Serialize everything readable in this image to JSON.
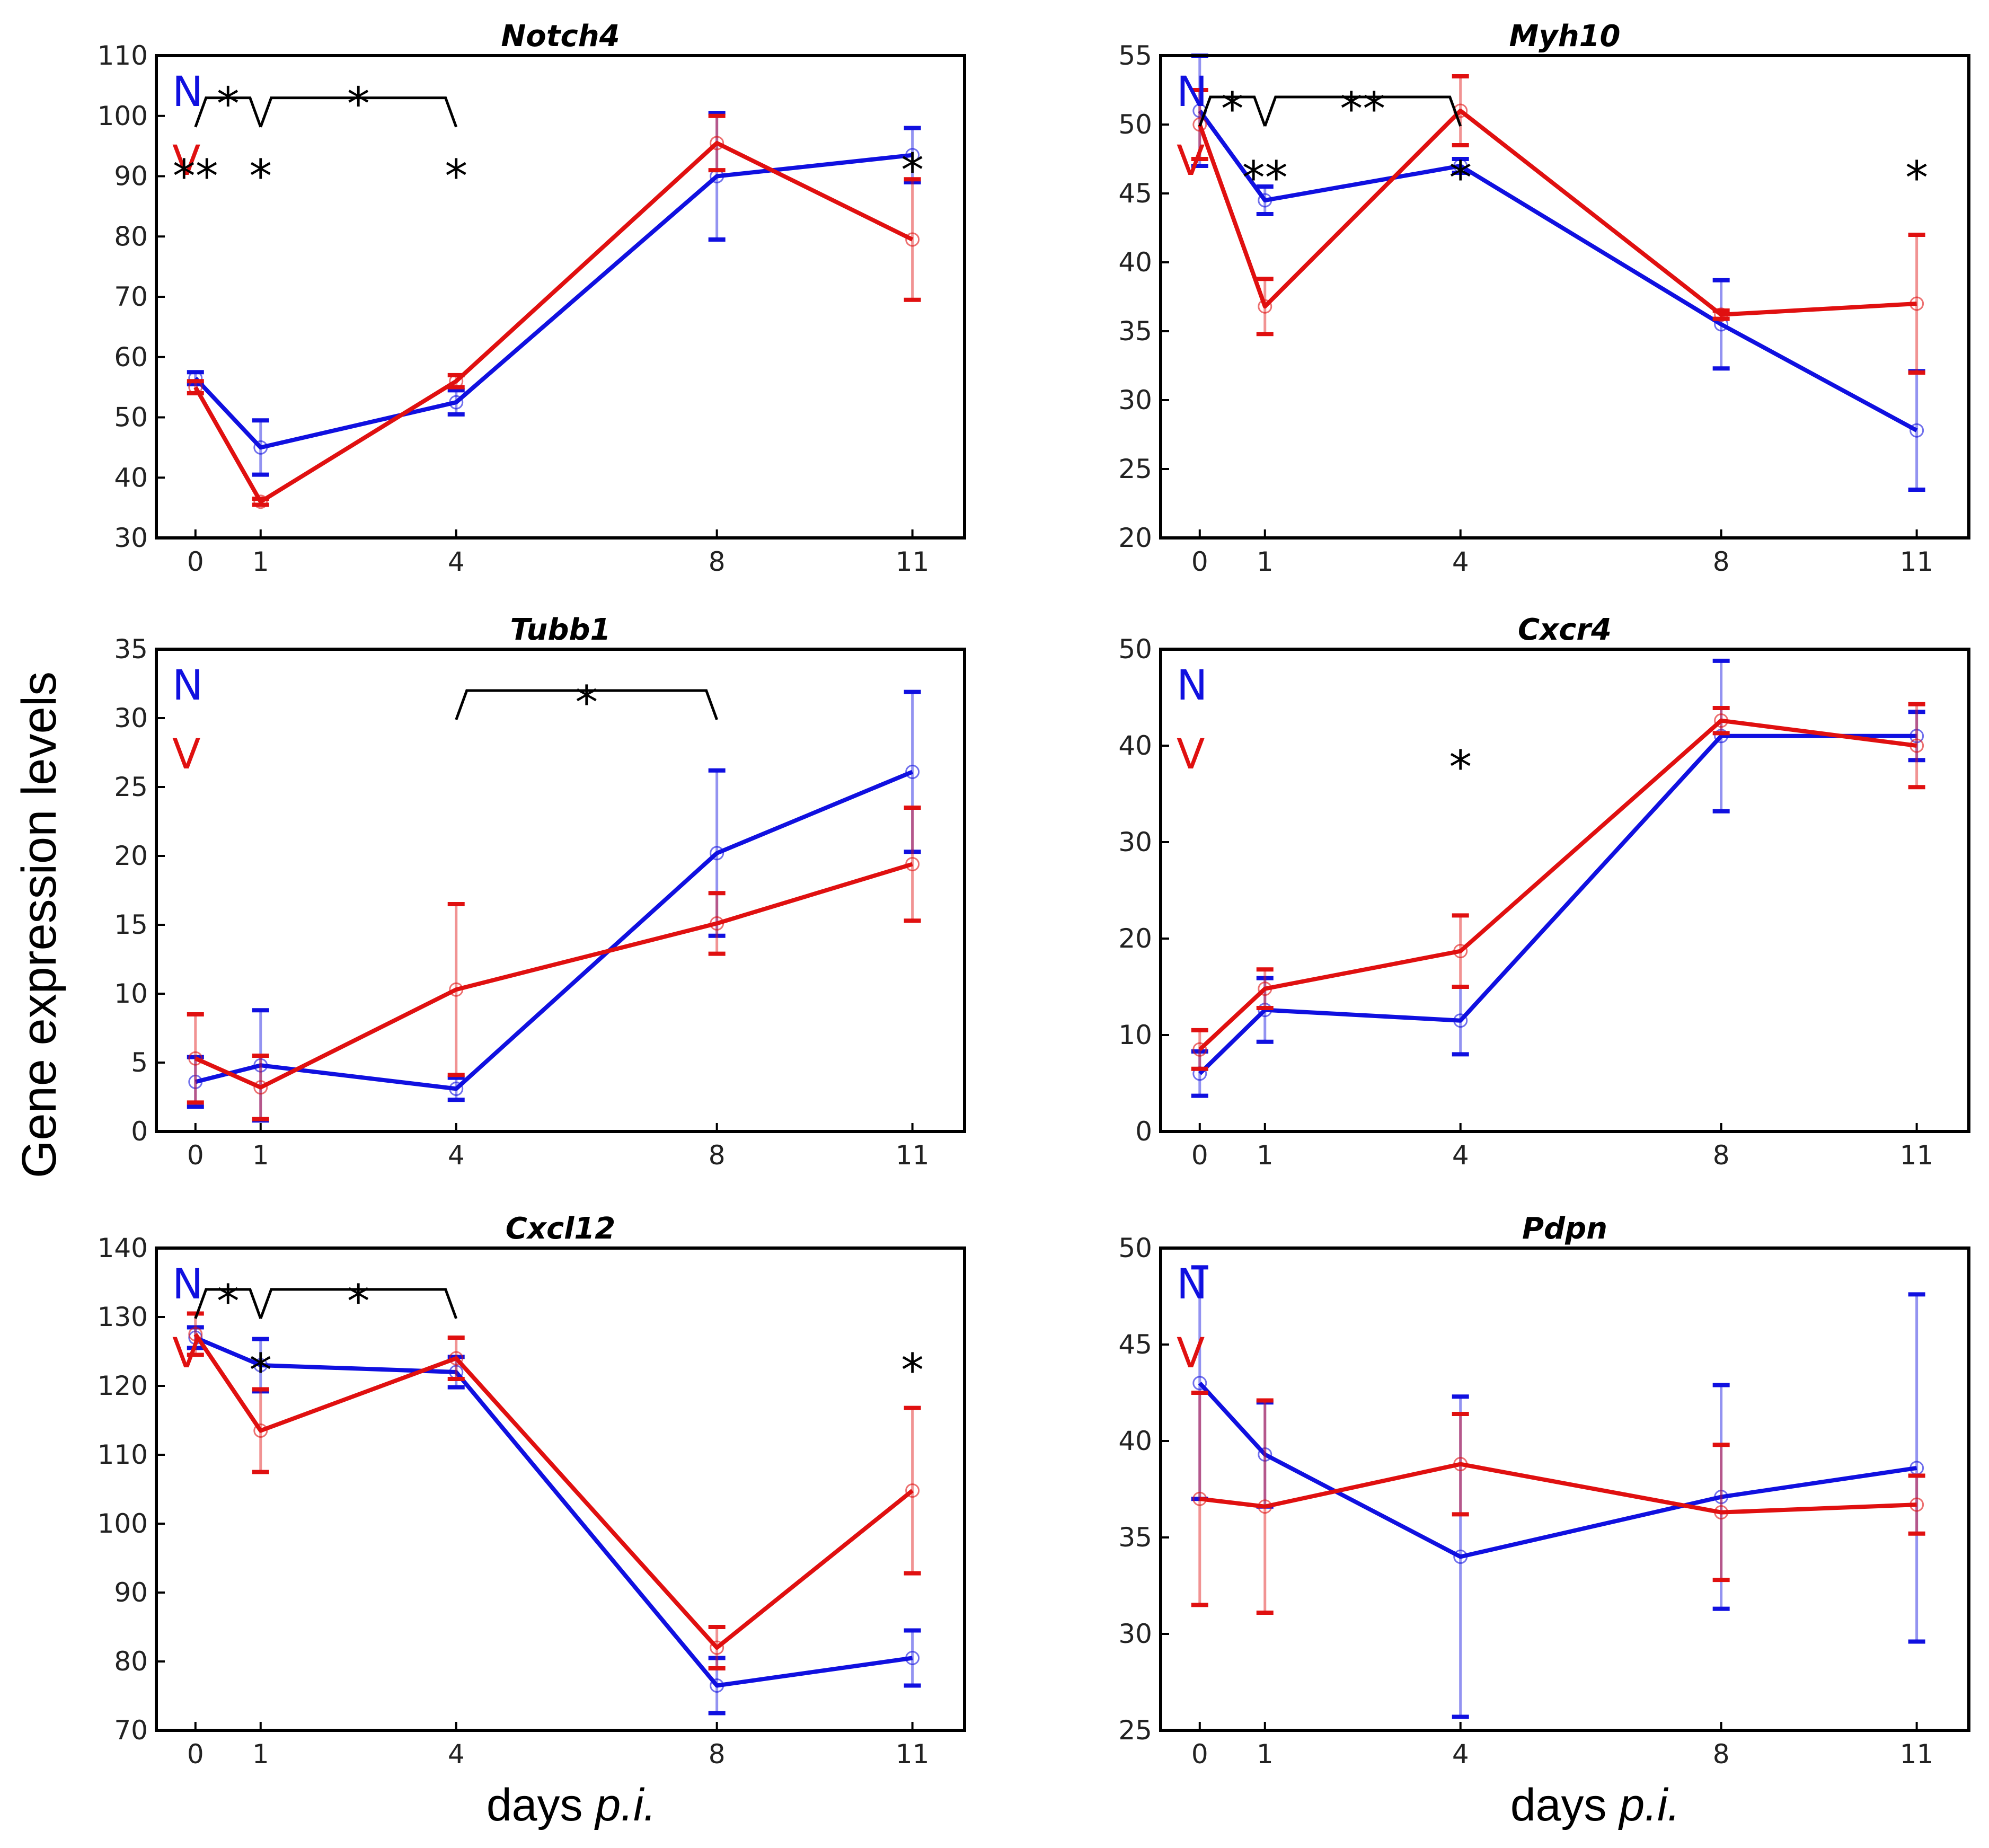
{
  "figure": {
    "ylabel": "Gene expression levels",
    "xlabel_prefix": "days ",
    "xlabel_italic": "p.i.",
    "colors": {
      "N": "#1010e0",
      "V": "#e01010"
    }
  },
  "chart_data": [
    {
      "type": "line",
      "title": "Notch4",
      "x": [
        0,
        1,
        4,
        8,
        11
      ],
      "xticks": [
        "0",
        "1",
        "4",
        "8",
        "11"
      ],
      "ylim": [
        30,
        110
      ],
      "yticks": [
        30,
        40,
        50,
        60,
        70,
        80,
        90,
        100,
        110
      ],
      "series": [
        {
          "name": "N",
          "values": [
            56.5,
            45,
            52.5,
            90,
            93.5
          ],
          "errors": [
            1,
            4.5,
            2,
            10.5,
            4.5
          ]
        },
        {
          "name": "V",
          "values": [
            55,
            36,
            56,
            95.5,
            79.5
          ],
          "errors": [
            1,
            0.5,
            1,
            4.5,
            10
          ]
        }
      ],
      "legend": [
        "N",
        "V"
      ],
      "annotations": [
        {
          "text": "*",
          "x": 0.5,
          "y": 104
        },
        {
          "text": "*",
          "x": 2.5,
          "y": 104
        },
        {
          "text": "**",
          "x": 0,
          "y": 92
        },
        {
          "text": "*",
          "x": 1,
          "y": 92
        },
        {
          "text": "*",
          "x": 4,
          "y": 92
        },
        {
          "text": "*",
          "x": 11,
          "y": 93
        }
      ],
      "brackets": [
        {
          "from": 0,
          "to": 1,
          "y": 103
        },
        {
          "from": 1,
          "to": 4,
          "y": 103
        }
      ]
    },
    {
      "type": "line",
      "title": "Myh10",
      "x": [
        0,
        1,
        4,
        8,
        11
      ],
      "xticks": [
        "0",
        "1",
        "4",
        "8",
        "11"
      ],
      "ylim": [
        20,
        55
      ],
      "yticks": [
        20,
        25,
        30,
        35,
        40,
        45,
        50,
        55
      ],
      "series": [
        {
          "name": "N",
          "values": [
            51,
            44.5,
            47,
            35.5,
            27.8
          ],
          "errors": [
            4,
            1,
            0.5,
            3.2,
            4.3
          ]
        },
        {
          "name": "V",
          "values": [
            50,
            36.8,
            51,
            36.2,
            37
          ],
          "errors": [
            2.5,
            2,
            2.5,
            0.3,
            5
          ]
        }
      ],
      "legend": [
        "N",
        "V"
      ],
      "annotations": [
        {
          "text": "*",
          "x": 0.5,
          "y": 52
        },
        {
          "text": "**",
          "x": 2.5,
          "y": 52
        },
        {
          "text": "**",
          "x": 1,
          "y": 47
        },
        {
          "text": "*",
          "x": 4,
          "y": 47
        },
        {
          "text": "*",
          "x": 11,
          "y": 47
        }
      ],
      "brackets": [
        {
          "from": 0,
          "to": 1,
          "y": 52
        },
        {
          "from": 1,
          "to": 4,
          "y": 52
        }
      ]
    },
    {
      "type": "line",
      "title": "Tubb1",
      "x": [
        0,
        1,
        4,
        8,
        11
      ],
      "xticks": [
        "0",
        "1",
        "4",
        "8",
        "11"
      ],
      "ylim": [
        0,
        35
      ],
      "yticks": [
        0,
        5,
        10,
        15,
        20,
        25,
        30,
        35
      ],
      "series": [
        {
          "name": "N",
          "values": [
            3.6,
            4.8,
            3.1,
            20.2,
            26.1
          ],
          "errors": [
            1.8,
            4,
            0.8,
            6,
            5.8
          ]
        },
        {
          "name": "V",
          "values": [
            5.3,
            3.2,
            10.3,
            15.1,
            19.4
          ],
          "errors": [
            3.2,
            2.3,
            6.2,
            2.2,
            4.1
          ]
        }
      ],
      "legend": [
        "N",
        "V"
      ],
      "annotations": [
        {
          "text": "*",
          "x": 6,
          "y": 32
        }
      ],
      "brackets": [
        {
          "from": 4,
          "to": 8,
          "y": 32
        }
      ]
    },
    {
      "type": "line",
      "title": "Cxcr4",
      "x": [
        0,
        1,
        4,
        8,
        11
      ],
      "xticks": [
        "0",
        "1",
        "4",
        "8",
        "11"
      ],
      "ylim": [
        0,
        50
      ],
      "yticks": [
        0,
        10,
        20,
        30,
        40,
        50
      ],
      "series": [
        {
          "name": "N",
          "values": [
            6,
            12.6,
            11.5,
            41,
            41
          ],
          "errors": [
            2.3,
            3.3,
            3.5,
            7.8,
            2.5
          ]
        },
        {
          "name": "V",
          "values": [
            8.5,
            14.8,
            18.7,
            42.6,
            40
          ],
          "errors": [
            2,
            2,
            3.7,
            1.3,
            4.3
          ]
        }
      ],
      "legend": [
        "N",
        "V"
      ],
      "annotations": [
        {
          "text": "*",
          "x": 4,
          "y": 39
        }
      ]
    },
    {
      "type": "line",
      "title": "Cxcl12",
      "x": [
        0,
        1,
        4,
        8,
        11
      ],
      "xticks": [
        "0",
        "1",
        "4",
        "8",
        "11"
      ],
      "ylim": [
        70,
        140
      ],
      "yticks": [
        70,
        80,
        90,
        100,
        110,
        120,
        130,
        140
      ],
      "series": [
        {
          "name": "N",
          "values": [
            127,
            123,
            122,
            76.5,
            80.5
          ],
          "errors": [
            1.5,
            3.8,
            2.2,
            4,
            4
          ]
        },
        {
          "name": "V",
          "values": [
            127.5,
            113.5,
            124,
            82,
            104.8
          ],
          "errors": [
            3,
            6,
            3,
            3,
            12
          ]
        }
      ],
      "legend": [
        "N",
        "V"
      ],
      "annotations": [
        {
          "text": "*",
          "x": 0.5,
          "y": 134
        },
        {
          "text": "*",
          "x": 2.5,
          "y": 134
        },
        {
          "text": "*",
          "x": 1,
          "y": 124
        },
        {
          "text": "*",
          "x": 11,
          "y": 124
        }
      ],
      "brackets": [
        {
          "from": 0,
          "to": 1,
          "y": 134
        },
        {
          "from": 1,
          "to": 4,
          "y": 134
        }
      ]
    },
    {
      "type": "line",
      "title": "Pdpn",
      "x": [
        0,
        1,
        4,
        8,
        11
      ],
      "xticks": [
        "0",
        "1",
        "4",
        "8",
        "11"
      ],
      "ylim": [
        25,
        50
      ],
      "yticks": [
        25,
        30,
        35,
        40,
        45,
        50
      ],
      "series": [
        {
          "name": "N",
          "values": [
            43,
            39.3,
            34,
            37.1,
            38.6
          ],
          "errors": [
            6,
            2.7,
            8.3,
            5.8,
            9
          ]
        },
        {
          "name": "V",
          "values": [
            37,
            36.6,
            38.8,
            36.3,
            36.7
          ],
          "errors": [
            5.5,
            5.5,
            2.6,
            3.5,
            1.5
          ]
        }
      ],
      "legend": [
        "N",
        "V"
      ],
      "annotations": []
    }
  ]
}
